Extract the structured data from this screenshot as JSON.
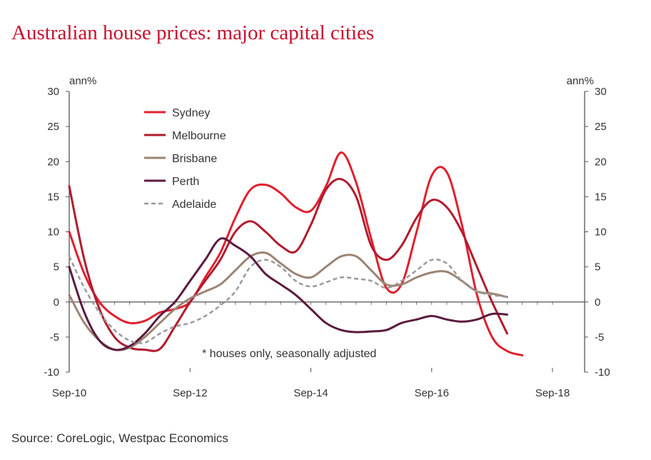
{
  "title": "Australian house prices: major capital cities",
  "source": "Source: CoreLogic, Westpac Economics",
  "chart_data": {
    "type": "line",
    "title": "Australian house prices: major capital cities",
    "ylabel_left": "ann%",
    "ylabel_right": "ann%",
    "ylim": [
      -10,
      30
    ],
    "yticks": [
      -10,
      -5,
      0,
      5,
      10,
      15,
      20,
      25,
      30
    ],
    "xlim": [
      "Sep-10",
      "Sep-18"
    ],
    "xticks": [
      "Sep-10",
      "Sep-12",
      "Sep-14",
      "Sep-16",
      "Sep-18"
    ],
    "annotation": "* houses only, seasonally adjusted",
    "legend_position": "top-left",
    "series": [
      {
        "name": "Sydney",
        "color": "#e0202e",
        "dash": "none",
        "points": [
          [
            "Sep-10",
            10
          ],
          [
            "Dec-10",
            4
          ],
          [
            "Mar-11",
            0
          ],
          [
            "Jun-11",
            -2
          ],
          [
            "Sep-11",
            -3
          ],
          [
            "Dec-11",
            -2.7
          ],
          [
            "Mar-12",
            -1.5
          ],
          [
            "Jun-12",
            -1
          ],
          [
            "Sep-12",
            0
          ],
          [
            "Dec-12",
            3.5
          ],
          [
            "Mar-13",
            7
          ],
          [
            "Jun-13",
            12
          ],
          [
            "Sep-13",
            16
          ],
          [
            "Dec-13",
            16.7
          ],
          [
            "Mar-14",
            15.5
          ],
          [
            "Jun-14",
            13.5
          ],
          [
            "Sep-14",
            13
          ],
          [
            "Dec-14",
            16.5
          ],
          [
            "Mar-15",
            21.3
          ],
          [
            "Jun-15",
            17
          ],
          [
            "Sep-15",
            9
          ],
          [
            "Dec-15",
            2
          ],
          [
            "Mar-16",
            2.5
          ],
          [
            "Jun-16",
            10
          ],
          [
            "Sep-16",
            18
          ],
          [
            "Dec-16",
            18.5
          ],
          [
            "Mar-17",
            11
          ],
          [
            "Jun-17",
            1
          ],
          [
            "Sep-17",
            -5
          ],
          [
            "Dec-17",
            -7
          ],
          [
            "Mar-18",
            -7.6
          ]
        ]
      },
      {
        "name": "Melbourne",
        "color": "#b01c2e",
        "dash": "none",
        "points": [
          [
            "Sep-10",
            16.5
          ],
          [
            "Dec-10",
            6
          ],
          [
            "Mar-11",
            -1
          ],
          [
            "Jun-11",
            -5
          ],
          [
            "Sep-11",
            -6.5
          ],
          [
            "Dec-11",
            -6.8
          ],
          [
            "Mar-12",
            -6.7
          ],
          [
            "Jun-12",
            -3.5
          ],
          [
            "Sep-12",
            0
          ],
          [
            "Dec-12",
            3
          ],
          [
            "Mar-13",
            6
          ],
          [
            "Jun-13",
            10
          ],
          [
            "Sep-13",
            11.5
          ],
          [
            "Dec-13",
            10
          ],
          [
            "Mar-14",
            8
          ],
          [
            "Jun-14",
            7.2
          ],
          [
            "Sep-14",
            11
          ],
          [
            "Dec-14",
            16
          ],
          [
            "Mar-15",
            17.5
          ],
          [
            "Jun-15",
            15
          ],
          [
            "Sep-15",
            8
          ],
          [
            "Dec-15",
            6
          ],
          [
            "Mar-16",
            8
          ],
          [
            "Jun-16",
            12
          ],
          [
            "Sep-16",
            14.5
          ],
          [
            "Dec-16",
            13.5
          ],
          [
            "Mar-17",
            10
          ],
          [
            "Jun-17",
            5
          ],
          [
            "Sep-17",
            0
          ],
          [
            "Dec-17",
            -4.5
          ]
        ]
      },
      {
        "name": "Brisbane",
        "color": "#9c8474",
        "dash": "none",
        "points": [
          [
            "Sep-10",
            1
          ],
          [
            "Dec-10",
            -3
          ],
          [
            "Mar-11",
            -5.5
          ],
          [
            "Jun-11",
            -6.8
          ],
          [
            "Sep-11",
            -6.5
          ],
          [
            "Dec-11",
            -5
          ],
          [
            "Mar-12",
            -3
          ],
          [
            "Jun-12",
            -1
          ],
          [
            "Sep-12",
            0.5
          ],
          [
            "Dec-12",
            1.5
          ],
          [
            "Mar-13",
            2.5
          ],
          [
            "Jun-13",
            4.5
          ],
          [
            "Sep-13",
            6.5
          ],
          [
            "Dec-13",
            7
          ],
          [
            "Mar-14",
            5.5
          ],
          [
            "Jun-14",
            4
          ],
          [
            "Sep-14",
            3.5
          ],
          [
            "Dec-14",
            5
          ],
          [
            "Mar-15",
            6.5
          ],
          [
            "Jun-15",
            6.5
          ],
          [
            "Sep-15",
            4.5
          ],
          [
            "Dec-15",
            2.5
          ],
          [
            "Mar-16",
            2.5
          ],
          [
            "Jun-16",
            3.5
          ],
          [
            "Sep-16",
            4.2
          ],
          [
            "Dec-16",
            4.3
          ],
          [
            "Mar-17",
            3
          ],
          [
            "Jun-17",
            1.5
          ],
          [
            "Sep-17",
            1.2
          ],
          [
            "Dec-17",
            0.7
          ]
        ]
      },
      {
        "name": "Perth",
        "color": "#5c1a3e",
        "dash": "none",
        "points": [
          [
            "Sep-10",
            5
          ],
          [
            "Dec-10",
            -1.5
          ],
          [
            "Mar-11",
            -5.5
          ],
          [
            "Jun-11",
            -6.8
          ],
          [
            "Sep-11",
            -6.3
          ],
          [
            "Dec-11",
            -4.5
          ],
          [
            "Mar-12",
            -2
          ],
          [
            "Jun-12",
            0
          ],
          [
            "Sep-12",
            3
          ],
          [
            "Dec-12",
            6
          ],
          [
            "Mar-13",
            9
          ],
          [
            "Jun-13",
            8
          ],
          [
            "Sep-13",
            6.5
          ],
          [
            "Dec-13",
            4
          ],
          [
            "Mar-14",
            2.5
          ],
          [
            "Jun-14",
            1
          ],
          [
            "Sep-14",
            -1
          ],
          [
            "Dec-14",
            -3
          ],
          [
            "Mar-15",
            -4
          ],
          [
            "Jun-15",
            -4.3
          ],
          [
            "Sep-15",
            -4.2
          ],
          [
            "Dec-15",
            -4
          ],
          [
            "Mar-16",
            -3
          ],
          [
            "Jun-16",
            -2.5
          ],
          [
            "Sep-16",
            -2
          ],
          [
            "Dec-16",
            -2.5
          ],
          [
            "Mar-17",
            -2.8
          ],
          [
            "Jun-17",
            -2.5
          ],
          [
            "Sep-17",
            -1.7
          ],
          [
            "Dec-17",
            -1.8
          ]
        ]
      },
      {
        "name": "Adelaide",
        "color": "#9a9a9a",
        "dash": "6,4",
        "points": [
          [
            "Sep-10",
            6.5
          ],
          [
            "Dec-10",
            2
          ],
          [
            "Mar-11",
            -1.5
          ],
          [
            "Jun-11",
            -4
          ],
          [
            "Sep-11",
            -5.5
          ],
          [
            "Dec-11",
            -5.8
          ],
          [
            "Mar-12",
            -4.5
          ],
          [
            "Jun-12",
            -3.5
          ],
          [
            "Sep-12",
            -3
          ],
          [
            "Dec-12",
            -2
          ],
          [
            "Mar-13",
            -0.5
          ],
          [
            "Jun-13",
            1.5
          ],
          [
            "Sep-13",
            5
          ],
          [
            "Dec-13",
            6
          ],
          [
            "Mar-14",
            5
          ],
          [
            "Jun-14",
            3
          ],
          [
            "Sep-14",
            2.2
          ],
          [
            "Dec-14",
            2.8
          ],
          [
            "Mar-15",
            3.5
          ],
          [
            "Jun-15",
            3.3
          ],
          [
            "Sep-15",
            3
          ],
          [
            "Dec-15",
            2
          ],
          [
            "Mar-16",
            3
          ],
          [
            "Jun-16",
            4.5
          ],
          [
            "Sep-16",
            6
          ],
          [
            "Dec-16",
            5.5
          ],
          [
            "Mar-17",
            3
          ],
          [
            "Jun-17",
            1.5
          ],
          [
            "Sep-17",
            1
          ],
          [
            "Dec-17",
            0.7
          ]
        ]
      }
    ]
  }
}
